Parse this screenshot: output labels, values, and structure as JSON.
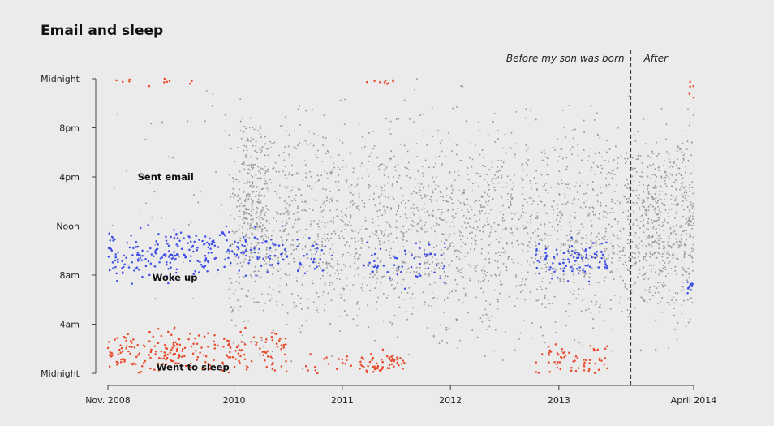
{
  "chart_data": {
    "type": "scatter",
    "title": "Email and sleep",
    "xlabel": "",
    "ylabel": "",
    "x_range": [
      "2008-11-01",
      "2014-04-01"
    ],
    "y_range_hours": [
      0,
      24
    ],
    "x_ticks": [
      {
        "date": "2008-11-01",
        "label": "Nov. 2008"
      },
      {
        "date": "2010-01-01",
        "label": "2010"
      },
      {
        "date": "2011-01-01",
        "label": "2011"
      },
      {
        "date": "2012-01-01",
        "label": "2012"
      },
      {
        "date": "2013-01-01",
        "label": "2013"
      },
      {
        "date": "2014-04-01",
        "label": "April 2014"
      }
    ],
    "y_ticks": [
      {
        "hour": 0,
        "label": "Midnight"
      },
      {
        "hour": 4,
        "label": "4am"
      },
      {
        "hour": 8,
        "label": "8am"
      },
      {
        "hour": 12,
        "label": "Noon"
      },
      {
        "hour": 16,
        "label": "4pm"
      },
      {
        "hour": 20,
        "label": "8pm"
      },
      {
        "hour": 24,
        "label": "Midnight"
      }
    ],
    "divider": {
      "date": "2013-09-01",
      "style": "dashed"
    },
    "period_labels": [
      {
        "text": "Before my son was born",
        "side": "left-of-divider"
      },
      {
        "text": "After",
        "side": "right-of-divider"
      }
    ],
    "series": [
      {
        "name": "Sent email",
        "color": "#9a9a9a"
      },
      {
        "name": "Woke up",
        "color": "#3d4fe6"
      },
      {
        "name": "Went to sleep",
        "color": "#e8492a"
      }
    ],
    "series_label_anchors": [
      {
        "series": "Sent email",
        "date": "2009-05-15",
        "hour": 16.0
      },
      {
        "series": "Woke up",
        "date": "2009-06-15",
        "hour": 7.8
      },
      {
        "series": "Went to sleep",
        "date": "2009-08-15",
        "hour": 0.5
      }
    ],
    "clusters": {
      "woke_up": [
        {
          "start": "2008-11-01",
          "end": "2009-06-30",
          "mean_hour": 9.5,
          "spread": 1.1,
          "count": 110
        },
        {
          "start": "2009-06-01",
          "end": "2010-06-30",
          "mean_hour": 10.0,
          "spread": 0.9,
          "count": 160
        },
        {
          "start": "2010-08-01",
          "end": "2010-11-30",
          "mean_hour": 9.5,
          "spread": 0.8,
          "count": 25
        },
        {
          "start": "2011-03-15",
          "end": "2011-12-15",
          "mean_hour": 9.0,
          "spread": 0.8,
          "count": 55
        },
        {
          "start": "2012-10-15",
          "end": "2013-06-15",
          "mean_hour": 9.2,
          "spread": 0.8,
          "count": 90
        },
        {
          "start": "2014-03-10",
          "end": "2014-04-01",
          "mean_hour": 7.0,
          "spread": 0.3,
          "count": 12
        }
      ],
      "went_to_sleep": [
        {
          "start": "2008-11-01",
          "end": "2009-06-30",
          "mean_hour": 1.6,
          "spread": 1.0,
          "count": 110
        },
        {
          "start": "2009-06-01",
          "end": "2010-06-30",
          "mean_hour": 1.8,
          "spread": 0.9,
          "count": 140
        },
        {
          "start": "2010-08-01",
          "end": "2011-02-01",
          "mean_hour": 0.8,
          "spread": 0.6,
          "count": 20
        },
        {
          "start": "2011-03-01",
          "end": "2011-07-31",
          "mean_hour": 0.9,
          "spread": 0.5,
          "count": 60
        },
        {
          "start": "2012-10-15",
          "end": "2013-06-15",
          "mean_hour": 1.0,
          "spread": 0.7,
          "count": 65
        },
        {
          "start": "2008-11-01",
          "end": "2009-08-31",
          "mean_hour": 23.8,
          "spread": 0.15,
          "count": 12
        },
        {
          "start": "2011-03-20",
          "end": "2011-10-31",
          "mean_hour": 23.8,
          "spread": 0.12,
          "count": 10
        },
        {
          "start": "2014-03-15",
          "end": "2014-04-01",
          "mean_hour": 23.4,
          "spread": 0.4,
          "count": 6
        }
      ],
      "sent_email": [
        {
          "start": "2009-12-15",
          "end": "2014-04-01",
          "mean_hour": 12.0,
          "spread": 4.2,
          "count": 2600
        },
        {
          "start": "2010-02-01",
          "end": "2010-04-30",
          "mean_hour": 15.0,
          "spread": 2.5,
          "count": 160
        },
        {
          "start": "2008-11-01",
          "end": "2009-12-15",
          "mean_hour": 16.0,
          "spread": 5.0,
          "count": 45
        },
        {
          "start": "2013-09-15",
          "end": "2014-04-01",
          "mean_hour": 12.0,
          "spread": 3.5,
          "count": 300
        }
      ]
    }
  }
}
